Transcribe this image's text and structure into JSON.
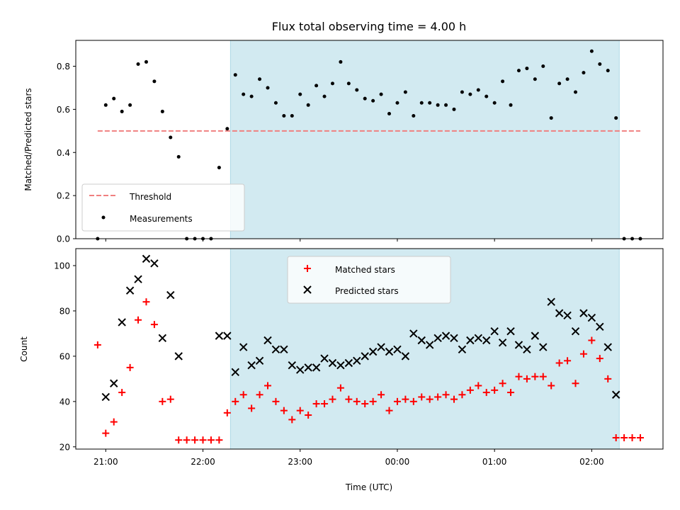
{
  "title": "Flux total observing time = 4.00 h",
  "xlabel": "Time (UTC)",
  "colors": {
    "band": "#add8e6",
    "threshold": "#f08080",
    "matched": "#ff0000",
    "predicted": "#000000",
    "measure": "#000000"
  },
  "chart_data": [
    {
      "type": "scatter",
      "ylabel": "Matched/Predicted stars",
      "ylim": [
        0,
        0.92
      ],
      "xlim_hours": [
        20.6917,
        26.7333
      ],
      "yticks": [
        0.0,
        0.2,
        0.4,
        0.6,
        0.8
      ],
      "ytick_labels": [
        "0.0",
        "0.2",
        "0.4",
        "0.6",
        "0.8"
      ],
      "observing_window": [
        "22:17",
        "02:17"
      ],
      "threshold": {
        "name": "Threshold",
        "value": 0.5,
        "x_range": [
          "20:55",
          "02:30"
        ]
      },
      "legend": {
        "placement": "lower left",
        "entries": [
          "Threshold",
          "Measurements"
        ]
      },
      "series": [
        {
          "name": "Measurements",
          "x": [
            "20:55",
            "21:00",
            "21:05",
            "21:10",
            "21:15",
            "21:20",
            "21:25",
            "21:30",
            "21:35",
            "21:40",
            "21:45",
            "21:50",
            "21:55",
            "22:00",
            "22:05",
            "22:10",
            "22:15",
            "22:20",
            "22:25",
            "22:30",
            "22:35",
            "22:40",
            "22:45",
            "22:50",
            "22:55",
            "23:00",
            "23:05",
            "23:10",
            "23:15",
            "23:20",
            "23:25",
            "23:30",
            "23:35",
            "23:40",
            "23:45",
            "23:50",
            "23:55",
            "00:00",
            "00:05",
            "00:10",
            "00:15",
            "00:20",
            "00:25",
            "00:30",
            "00:35",
            "00:40",
            "00:45",
            "00:50",
            "00:55",
            "01:00",
            "01:05",
            "01:10",
            "01:15",
            "01:20",
            "01:25",
            "01:30",
            "01:35",
            "01:40",
            "01:45",
            "01:50",
            "01:55",
            "02:00",
            "02:05",
            "02:10",
            "02:15",
            "02:20",
            "02:25",
            "02:30"
          ],
          "y": [
            0.0,
            0.62,
            0.65,
            0.59,
            0.62,
            0.81,
            0.82,
            0.73,
            0.59,
            0.47,
            0.38,
            0.0,
            0.0,
            0.0,
            0.0,
            0.33,
            0.51,
            0.76,
            0.67,
            0.66,
            0.74,
            0.7,
            0.63,
            0.57,
            0.57,
            0.67,
            0.62,
            0.71,
            0.66,
            0.72,
            0.82,
            0.72,
            0.69,
            0.65,
            0.64,
            0.67,
            0.58,
            0.63,
            0.68,
            0.57,
            0.63,
            0.63,
            0.62,
            0.62,
            0.6,
            0.68,
            0.67,
            0.69,
            0.66,
            0.63,
            0.73,
            0.62,
            0.78,
            0.79,
            0.74,
            0.8,
            0.56,
            0.72,
            0.74,
            0.68,
            0.77,
            0.87,
            0.81,
            0.78,
            0.56,
            0.0,
            0.0,
            0.0
          ]
        }
      ]
    },
    {
      "type": "scatter",
      "ylabel": "Count",
      "ylim": [
        19,
        107.5
      ],
      "xlim_hours": [
        20.6917,
        26.7333
      ],
      "yticks": [
        20,
        40,
        60,
        80,
        100
      ],
      "ytick_labels": [
        "20",
        "40",
        "60",
        "80",
        "100"
      ],
      "xticks": [
        "21:00",
        "22:00",
        "23:00",
        "00:00",
        "01:00",
        "02:00"
      ],
      "observing_window": [
        "22:17",
        "02:17"
      ],
      "legend": {
        "placement": "upper center",
        "entries": [
          "Matched stars",
          "Predicted stars"
        ]
      },
      "series": [
        {
          "name": "Matched stars",
          "marker": "plus",
          "x": [
            "20:55",
            "21:00",
            "21:05",
            "21:10",
            "21:15",
            "21:20",
            "21:25",
            "21:30",
            "21:35",
            "21:40",
            "21:45",
            "21:50",
            "21:55",
            "22:00",
            "22:05",
            "22:10",
            "22:15",
            "22:20",
            "22:25",
            "22:30",
            "22:35",
            "22:40",
            "22:45",
            "22:50",
            "22:55",
            "23:00",
            "23:05",
            "23:10",
            "23:15",
            "23:20",
            "23:25",
            "23:30",
            "23:35",
            "23:40",
            "23:45",
            "23:50",
            "23:55",
            "00:00",
            "00:05",
            "00:10",
            "00:15",
            "00:20",
            "00:25",
            "00:30",
            "00:35",
            "00:40",
            "00:45",
            "00:50",
            "00:55",
            "01:00",
            "01:05",
            "01:10",
            "01:15",
            "01:20",
            "01:25",
            "01:30",
            "01:35",
            "01:40",
            "01:45",
            "01:50",
            "01:55",
            "02:00",
            "02:05",
            "02:10",
            "02:15",
            "02:20",
            "02:25",
            "02:30"
          ],
          "y": [
            65,
            26,
            31,
            44,
            55,
            76,
            84,
            74,
            40,
            41,
            23,
            23,
            23,
            23,
            23,
            23,
            35,
            40,
            43,
            37,
            43,
            47,
            40,
            36,
            32,
            36,
            34,
            39,
            39,
            41,
            46,
            41,
            40,
            39,
            40,
            43,
            36,
            40,
            41,
            40,
            42,
            41,
            42,
            43,
            41,
            43,
            45,
            47,
            44,
            45,
            48,
            44,
            51,
            50,
            51,
            51,
            47,
            57,
            58,
            48,
            61,
            67,
            59,
            50,
            24,
            24,
            24,
            24
          ]
        },
        {
          "name": "Predicted stars",
          "marker": "x",
          "x": [
            "21:00",
            "21:05",
            "21:10",
            "21:15",
            "21:20",
            "21:25",
            "21:30",
            "21:35",
            "21:40",
            "21:45",
            "22:10",
            "22:15",
            "22:20",
            "22:25",
            "22:30",
            "22:35",
            "22:40",
            "22:45",
            "22:50",
            "22:55",
            "23:00",
            "23:05",
            "23:10",
            "23:15",
            "23:20",
            "23:25",
            "23:30",
            "23:35",
            "23:40",
            "23:45",
            "23:50",
            "23:55",
            "00:00",
            "00:05",
            "00:10",
            "00:15",
            "00:20",
            "00:25",
            "00:30",
            "00:35",
            "00:40",
            "00:45",
            "00:50",
            "00:55",
            "01:00",
            "01:05",
            "01:10",
            "01:15",
            "01:20",
            "01:25",
            "01:30",
            "01:35",
            "01:40",
            "01:45",
            "01:50",
            "01:55",
            "02:00",
            "02:05",
            "02:10",
            "02:15"
          ],
          "y": [
            42,
            48,
            75,
            89,
            94,
            103,
            101,
            68,
            87,
            60,
            69,
            69,
            53,
            64,
            56,
            58,
            67,
            63,
            63,
            56,
            54,
            55,
            55,
            59,
            57,
            56,
            57,
            58,
            60,
            62,
            64,
            62,
            63,
            60,
            70,
            67,
            65,
            68,
            69,
            68,
            63,
            67,
            68,
            67,
            71,
            66,
            71,
            65,
            63,
            69,
            64,
            84,
            79,
            78,
            71,
            79,
            77,
            73,
            64,
            43
          ]
        }
      ]
    }
  ]
}
